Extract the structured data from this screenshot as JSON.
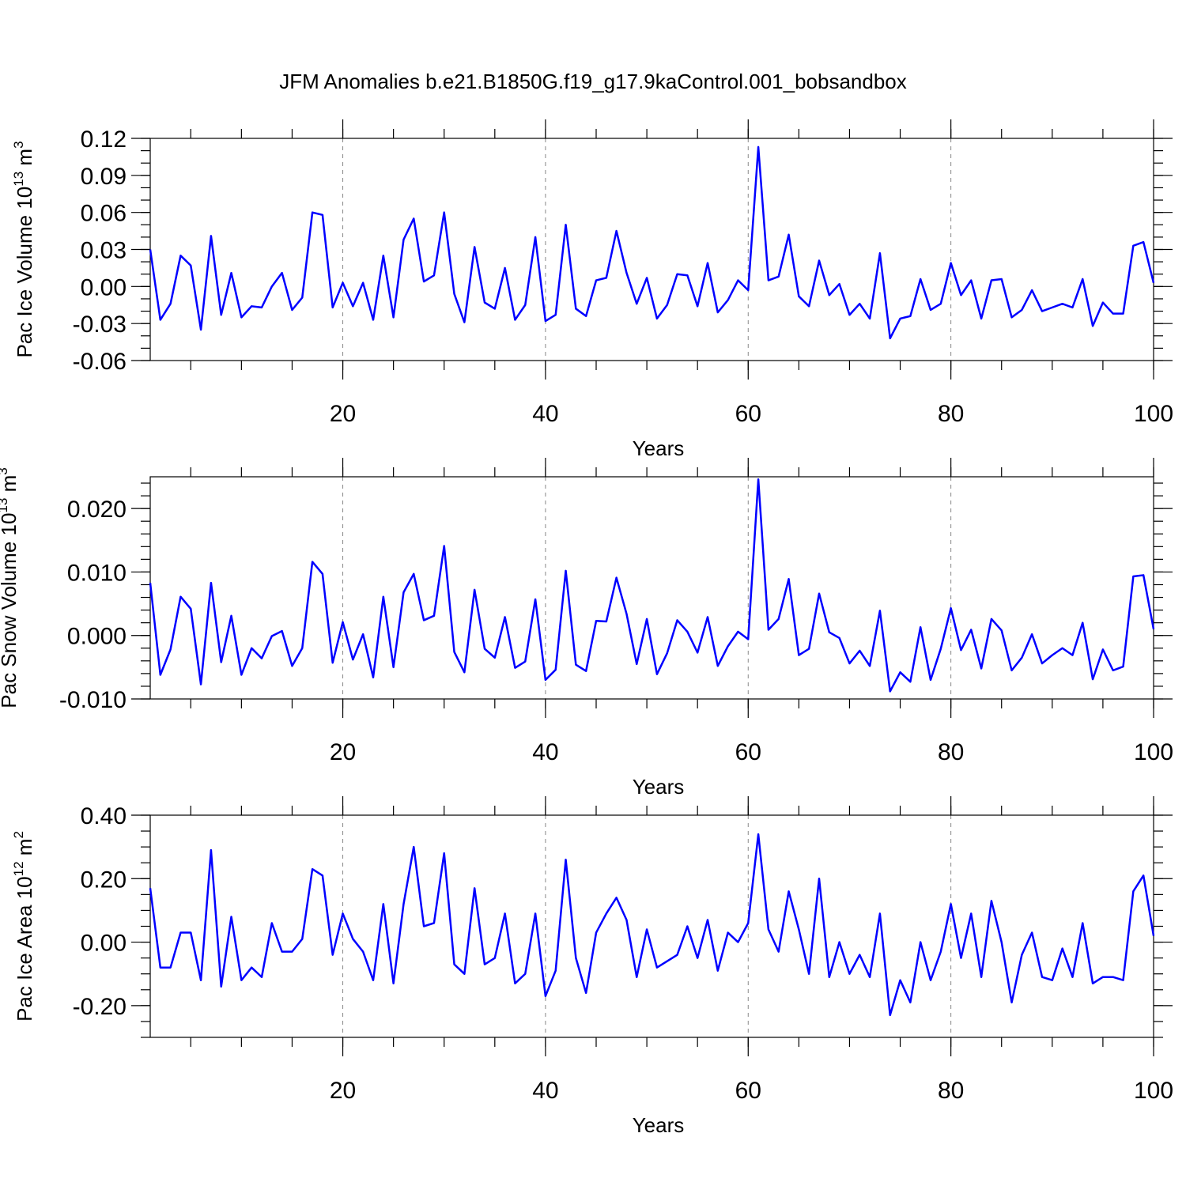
{
  "title": "JFM Anomalies b.e21.B1850G.f19_g17.9kaControl.001_bobsandbox",
  "colors": {
    "series": "#0000ff",
    "axes": "#000000",
    "grid": "#888888"
  },
  "chart_data": [
    {
      "type": "line",
      "ylabel": {
        "prefix": "Pac Ice Volume 10",
        "exp": "13",
        "unit": " m",
        "unit_exp": "3"
      },
      "xlabel": "Years",
      "xlim": [
        1,
        100
      ],
      "ylim": [
        -0.06,
        0.12
      ],
      "y_ticks": [
        -0.06,
        -0.03,
        0.0,
        0.03,
        0.06,
        0.09,
        0.12
      ],
      "y_tick_labels": [
        "-0.06",
        "-0.03",
        "0.00",
        "0.03",
        "0.06",
        "0.09",
        "0.12"
      ],
      "y_minor_step": 0.01,
      "x_ticks": [
        20,
        40,
        60,
        80,
        100
      ],
      "x_tick_labels": [
        "20",
        "40",
        "60",
        "80",
        "100"
      ],
      "x_minor_step": 5,
      "grid_x": [
        20,
        40,
        60,
        80
      ],
      "x": [
        1,
        2,
        3,
        4,
        5,
        6,
        7,
        8,
        9,
        10,
        11,
        12,
        13,
        14,
        15,
        16,
        17,
        18,
        19,
        20,
        21,
        22,
        23,
        24,
        25,
        26,
        27,
        28,
        29,
        30,
        31,
        32,
        33,
        34,
        35,
        36,
        37,
        38,
        39,
        40,
        41,
        42,
        43,
        44,
        45,
        46,
        47,
        48,
        49,
        50,
        51,
        52,
        53,
        54,
        55,
        56,
        57,
        58,
        59,
        60,
        61,
        62,
        63,
        64,
        65,
        66,
        67,
        68,
        69,
        70,
        71,
        72,
        73,
        74,
        75,
        76,
        77,
        78,
        79,
        80,
        81,
        82,
        83,
        84,
        85,
        86,
        87,
        88,
        89,
        90,
        91,
        92,
        93,
        94,
        95,
        96,
        97,
        98,
        99,
        100
      ],
      "values": [
        0.03,
        -0.027,
        -0.014,
        0.025,
        0.017,
        -0.035,
        0.041,
        -0.023,
        0.011,
        -0.025,
        -0.016,
        -0.017,
        0.0,
        0.011,
        -0.019,
        -0.009,
        0.06,
        0.058,
        -0.017,
        0.003,
        -0.016,
        0.003,
        -0.027,
        0.025,
        -0.025,
        0.038,
        0.055,
        0.004,
        0.009,
        0.06,
        -0.006,
        -0.029,
        0.032,
        -0.013,
        -0.018,
        0.015,
        -0.027,
        -0.015,
        0.04,
        -0.028,
        -0.023,
        0.05,
        -0.018,
        -0.024,
        0.005,
        0.007,
        0.045,
        0.011,
        -0.014,
        0.007,
        -0.026,
        -0.015,
        0.01,
        0.009,
        -0.016,
        0.019,
        -0.021,
        -0.011,
        0.005,
        -0.003,
        0.113,
        0.005,
        0.008,
        0.042,
        -0.008,
        -0.016,
        0.021,
        -0.007,
        0.002,
        -0.023,
        -0.014,
        -0.026,
        0.027,
        -0.042,
        -0.026,
        -0.024,
        0.006,
        -0.019,
        -0.014,
        0.019,
        -0.007,
        0.005,
        -0.026,
        0.005,
        0.006,
        -0.025,
        -0.019,
        -0.003,
        -0.02,
        -0.017,
        -0.014,
        -0.017,
        0.006,
        -0.032,
        -0.013,
        -0.022,
        -0.022,
        0.033,
        0.036,
        0.003
      ]
    },
    {
      "type": "line",
      "ylabel": {
        "prefix": "Pac Snow Volume 10",
        "exp": "13",
        "unit": " m",
        "unit_exp": "3"
      },
      "xlabel": "Years",
      "xlim": [
        1,
        100
      ],
      "ylim": [
        -0.01,
        0.025
      ],
      "y_ticks": [
        -0.01,
        0.0,
        0.01,
        0.02
      ],
      "y_tick_labels": [
        "-0.010",
        "0.000",
        "0.010",
        "0.020"
      ],
      "y_minor_step": 0.002,
      "x_ticks": [
        20,
        40,
        60,
        80,
        100
      ],
      "x_tick_labels": [
        "20",
        "40",
        "60",
        "80",
        "100"
      ],
      "x_minor_step": 5,
      "grid_x": [
        20,
        40,
        60,
        80
      ],
      "x": [
        1,
        2,
        3,
        4,
        5,
        6,
        7,
        8,
        9,
        10,
        11,
        12,
        13,
        14,
        15,
        16,
        17,
        18,
        19,
        20,
        21,
        22,
        23,
        24,
        25,
        26,
        27,
        28,
        29,
        30,
        31,
        32,
        33,
        34,
        35,
        36,
        37,
        38,
        39,
        40,
        41,
        42,
        43,
        44,
        45,
        46,
        47,
        48,
        49,
        50,
        51,
        52,
        53,
        54,
        55,
        56,
        57,
        58,
        59,
        60,
        61,
        62,
        63,
        64,
        65,
        66,
        67,
        68,
        69,
        70,
        71,
        72,
        73,
        74,
        75,
        76,
        77,
        78,
        79,
        80,
        81,
        82,
        83,
        84,
        85,
        86,
        87,
        88,
        89,
        90,
        91,
        92,
        93,
        94,
        95,
        96,
        97,
        98,
        99,
        100
      ],
      "values": [
        0.0083,
        -0.0062,
        -0.0022,
        0.0061,
        0.0042,
        -0.0077,
        0.0083,
        -0.0042,
        0.0031,
        -0.0062,
        -0.002,
        -0.0036,
        -0.0001,
        0.0007,
        -0.0048,
        -0.002,
        0.0116,
        0.0097,
        -0.0043,
        0.0021,
        -0.0038,
        0.0002,
        -0.0066,
        0.0061,
        -0.005,
        0.0068,
        0.0097,
        0.0024,
        0.0031,
        0.0141,
        -0.0026,
        -0.0058,
        0.0072,
        -0.0021,
        -0.0035,
        0.0029,
        -0.0051,
        -0.0041,
        0.0057,
        -0.007,
        -0.0054,
        0.0102,
        -0.0046,
        -0.0056,
        0.0023,
        0.0022,
        0.0091,
        0.0034,
        -0.0045,
        0.0026,
        -0.0061,
        -0.0028,
        0.0024,
        0.0006,
        -0.0027,
        0.0029,
        -0.0048,
        -0.0017,
        0.0006,
        -0.0006,
        0.0246,
        0.0009,
        0.0026,
        0.0089,
        -0.0031,
        -0.0021,
        0.0066,
        0.0005,
        -0.0004,
        -0.0044,
        -0.0024,
        -0.0048,
        0.0039,
        -0.0088,
        -0.0058,
        -0.0073,
        0.0013,
        -0.007,
        -0.0021,
        0.0043,
        -0.0023,
        0.0009,
        -0.0052,
        0.0026,
        0.0008,
        -0.0055,
        -0.0035,
        0.0002,
        -0.0044,
        -0.0031,
        -0.002,
        -0.0031,
        0.002,
        -0.0069,
        -0.0022,
        -0.0055,
        -0.0049,
        0.0093,
        0.0095,
        0.001
      ]
    },
    {
      "type": "line",
      "ylabel": {
        "prefix": "Pac Ice Area 10",
        "exp": "12",
        "unit": " m",
        "unit_exp": "2"
      },
      "xlabel": "Years",
      "xlim": [
        1,
        100
      ],
      "ylim": [
        -0.3,
        0.4
      ],
      "y_ticks": [
        -0.2,
        0.0,
        0.2,
        0.4
      ],
      "y_tick_labels": [
        "-0.20",
        "0.00",
        "0.20",
        "0.40"
      ],
      "y_minor_step": 0.05,
      "x_ticks": [
        20,
        40,
        60,
        80,
        100
      ],
      "x_tick_labels": [
        "20",
        "40",
        "60",
        "80",
        "100"
      ],
      "x_minor_step": 5,
      "grid_x": [
        20,
        40,
        60,
        80
      ],
      "x": [
        1,
        2,
        3,
        4,
        5,
        6,
        7,
        8,
        9,
        10,
        11,
        12,
        13,
        14,
        15,
        16,
        17,
        18,
        19,
        20,
        21,
        22,
        23,
        24,
        25,
        26,
        27,
        28,
        29,
        30,
        31,
        32,
        33,
        34,
        35,
        36,
        37,
        38,
        39,
        40,
        41,
        42,
        43,
        44,
        45,
        46,
        47,
        48,
        49,
        50,
        51,
        52,
        53,
        54,
        55,
        56,
        57,
        58,
        59,
        60,
        61,
        62,
        63,
        64,
        65,
        66,
        67,
        68,
        69,
        70,
        71,
        72,
        73,
        74,
        75,
        76,
        77,
        78,
        79,
        80,
        81,
        82,
        83,
        84,
        85,
        86,
        87,
        88,
        89,
        90,
        91,
        92,
        93,
        94,
        95,
        96,
        97,
        98,
        99,
        100
      ],
      "values": [
        0.17,
        -0.08,
        -0.08,
        0.03,
        0.03,
        -0.12,
        0.29,
        -0.14,
        0.08,
        -0.12,
        -0.08,
        -0.11,
        0.06,
        -0.03,
        -0.03,
        0.01,
        0.23,
        0.21,
        -0.04,
        0.09,
        0.01,
        -0.03,
        -0.12,
        0.12,
        -0.13,
        0.12,
        0.3,
        0.05,
        0.06,
        0.28,
        -0.07,
        -0.1,
        0.17,
        -0.07,
        -0.05,
        0.09,
        -0.13,
        -0.1,
        0.09,
        -0.17,
        -0.09,
        0.26,
        -0.05,
        -0.16,
        0.03,
        0.09,
        0.14,
        0.07,
        -0.11,
        0.04,
        -0.08,
        -0.06,
        -0.04,
        0.05,
        -0.05,
        0.07,
        -0.09,
        0.03,
        0.0,
        0.06,
        0.34,
        0.04,
        -0.03,
        0.16,
        0.04,
        -0.1,
        0.2,
        -0.11,
        0.0,
        -0.1,
        -0.04,
        -0.11,
        0.09,
        -0.23,
        -0.12,
        -0.19,
        0.0,
        -0.12,
        -0.03,
        0.12,
        -0.05,
        0.09,
        -0.11,
        0.13,
        0.0,
        -0.19,
        -0.04,
        0.03,
        -0.11,
        -0.12,
        -0.02,
        -0.11,
        0.06,
        -0.13,
        -0.11,
        -0.11,
        -0.12,
        0.16,
        0.21,
        0.02
      ]
    }
  ]
}
